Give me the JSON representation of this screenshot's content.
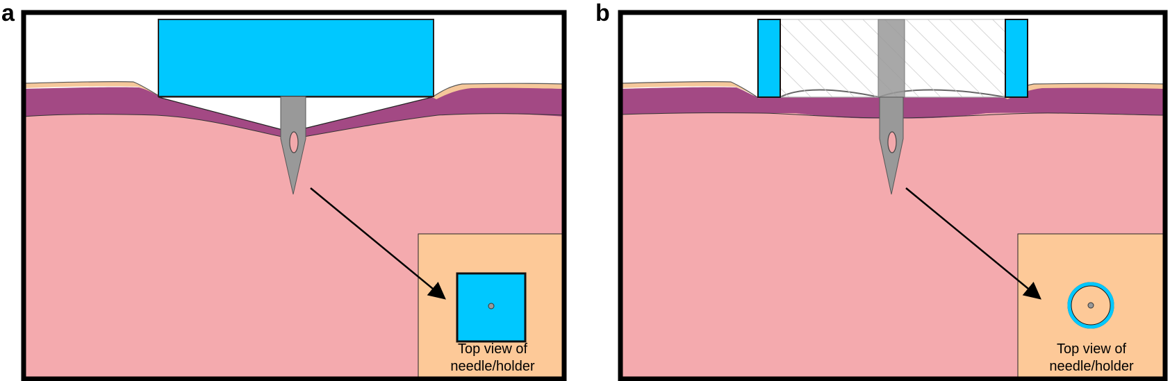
{
  "colors": {
    "tissue": "#F4AAAE",
    "dermis": "#A34984",
    "epidermis": "#F5C79A",
    "holder": "#00C8FF",
    "needle": "#999999",
    "needle_eye": "#F2A9AC",
    "inset_background": "#FDC998",
    "frame": "#000000",
    "transparent_holder_hatch": "#C8C8C8"
  },
  "panels": [
    {
      "letter": "a",
      "holder_shape": "square",
      "holder_style": "solid-block",
      "inset_caption_line1": "Top view of",
      "inset_caption_line2": "needle/holder"
    },
    {
      "letter": "b",
      "holder_shape": "ring",
      "holder_style": "transparent-tube-with-blue-walls",
      "inset_caption_line1": "Top view of",
      "inset_caption_line2": "needle/holder"
    }
  ]
}
